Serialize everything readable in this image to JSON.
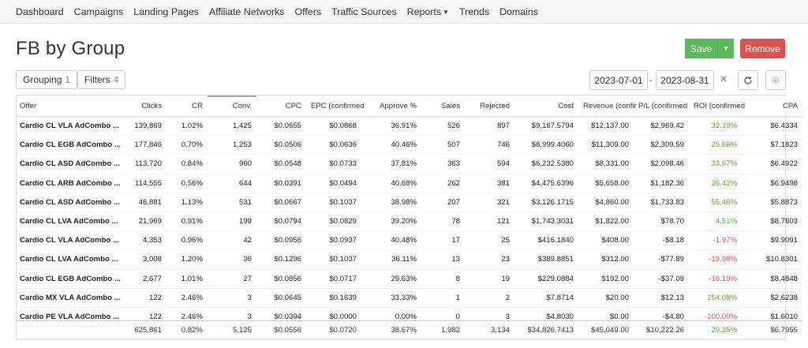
{
  "nav": {
    "items": [
      "Dashboard",
      "Campaigns",
      "Landing Pages",
      "Affiliate Networks",
      "Offers",
      "Traffic Sources",
      "Reports",
      "Trends",
      "Domains"
    ]
  },
  "page": {
    "title": "FB by Group",
    "save_label": "Save",
    "remove_label": "Remove"
  },
  "filters": {
    "grouping_label": "Grouping",
    "grouping_count": "1",
    "filters_label": "Filters",
    "filters_count": "4",
    "date_from": "2023-07-01",
    "date_sep": "-",
    "date_to": "2023-08-31"
  },
  "colors": {
    "save": "#5cb85c",
    "remove": "#d9534f",
    "positive": "#5aa332",
    "negative": "#d9534f"
  },
  "table": {
    "columns": [
      "Offer",
      "Clicks",
      "CR",
      "Conv.",
      "CPC",
      "EPC (confirmed",
      "Approve %",
      "Sales",
      "Rejected",
      "Cost",
      "Revenue (confir",
      "P/L (confirmed",
      "ROI (confirmed",
      "CPA"
    ],
    "rows": [
      [
        "Cardio CL VLA AdCombo ...",
        "139,869",
        "1.02%",
        "1,425",
        "$0.0655",
        "$0.0868",
        "36.91%",
        "526",
        "897",
        "$9,167.5794",
        "$12,137.00",
        "$2,969.42",
        "32.39%",
        "$6.4334"
      ],
      [
        "Cardio CL EGB AdCombo ...",
        "177,846",
        "0.70%",
        "1,253",
        "$0.0506",
        "$0.0636",
        "40.46%",
        "507",
        "746",
        "$8,999.4060",
        "$11,309.00",
        "$2,309.59",
        "25.66%",
        "$7.1823"
      ],
      [
        "Cardio CL ASD AdCombo ...",
        "113,720",
        "0.84%",
        "960",
        "$0.0548",
        "$0.0733",
        "37.81%",
        "363",
        "594",
        "$6,232.5380",
        "$8,331.00",
        "$2,098.46",
        "33.67%",
        "$6.4922"
      ],
      [
        "Cardio CL ARB AdCombo ...",
        "114,555",
        "0.56%",
        "644",
        "$0.0391",
        "$0.0494",
        "40.68%",
        "262",
        "381",
        "$4,475.6396",
        "$5,658.00",
        "$1,182.36",
        "26.42%",
        "$6.9498"
      ],
      [
        "Cardio CL ASD AdCombo ...",
        "46,881",
        "1.13%",
        "531",
        "$0.0667",
        "$0.1037",
        "38.98%",
        "207",
        "321",
        "$3,126.1715",
        "$4,860.00",
        "$1,733.83",
        "55.46%",
        "$5.8873"
      ],
      [
        "Cardio CL LVA AdCombo ...",
        "21,969",
        "0.91%",
        "199",
        "$0.0794",
        "$0.0829",
        "39.20%",
        "78",
        "121",
        "$1,743.3031",
        "$1,822.00",
        "$78.70",
        "4.51%",
        "$8.7603"
      ],
      [
        "Cardio CL VLA AdCombo ...",
        "4,353",
        "0.96%",
        "42",
        "$0.0956",
        "$0.0937",
        "40.48%",
        "17",
        "25",
        "$416.1840",
        "$408.00",
        "-$8.18",
        "-1.97%",
        "$9.9091"
      ],
      [
        "Cardio CL LVA AdCombo ...",
        "3,008",
        "1.20%",
        "36",
        "$0.1296",
        "$0.1037",
        "36.11%",
        "13",
        "23",
        "$389.8851",
        "$312.00",
        "-$77.89",
        "-19.98%",
        "$10.8301"
      ],
      [
        "Cardio CL EGB AdCombo ...",
        "2,677",
        "1.01%",
        "27",
        "$0.0856",
        "$0.0717",
        "29.63%",
        "8",
        "19",
        "$229.0884",
        "$192.00",
        "-$37.09",
        "-16.19%",
        "$8.4848"
      ],
      [
        "Cardio MX VLA AdCombo ...",
        "122",
        "2.46%",
        "3",
        "$0.0645",
        "$0.1639",
        "33.33%",
        "1",
        "2",
        "$7.8714",
        "$20.00",
        "$12.13",
        "154.08%",
        "$2.6238"
      ],
      [
        "Cardio PE VLA AdCombo ...",
        "122",
        "2.46%",
        "3",
        "$0.0394",
        "$0.0000",
        "0.00%",
        "0",
        "3",
        "$4.8030",
        "$0.00",
        "-$4.80",
        "-100.00%",
        "$1.6010"
      ]
    ],
    "totals": [
      "",
      "625,861",
      "0.82%",
      "5,125",
      "$0.0556",
      "$0.0720",
      "38.67%",
      "1,982",
      "3,134",
      "$34,826.7413",
      "$45,049.00",
      "$10,222.26",
      "29.35%",
      "$6.7955"
    ]
  }
}
